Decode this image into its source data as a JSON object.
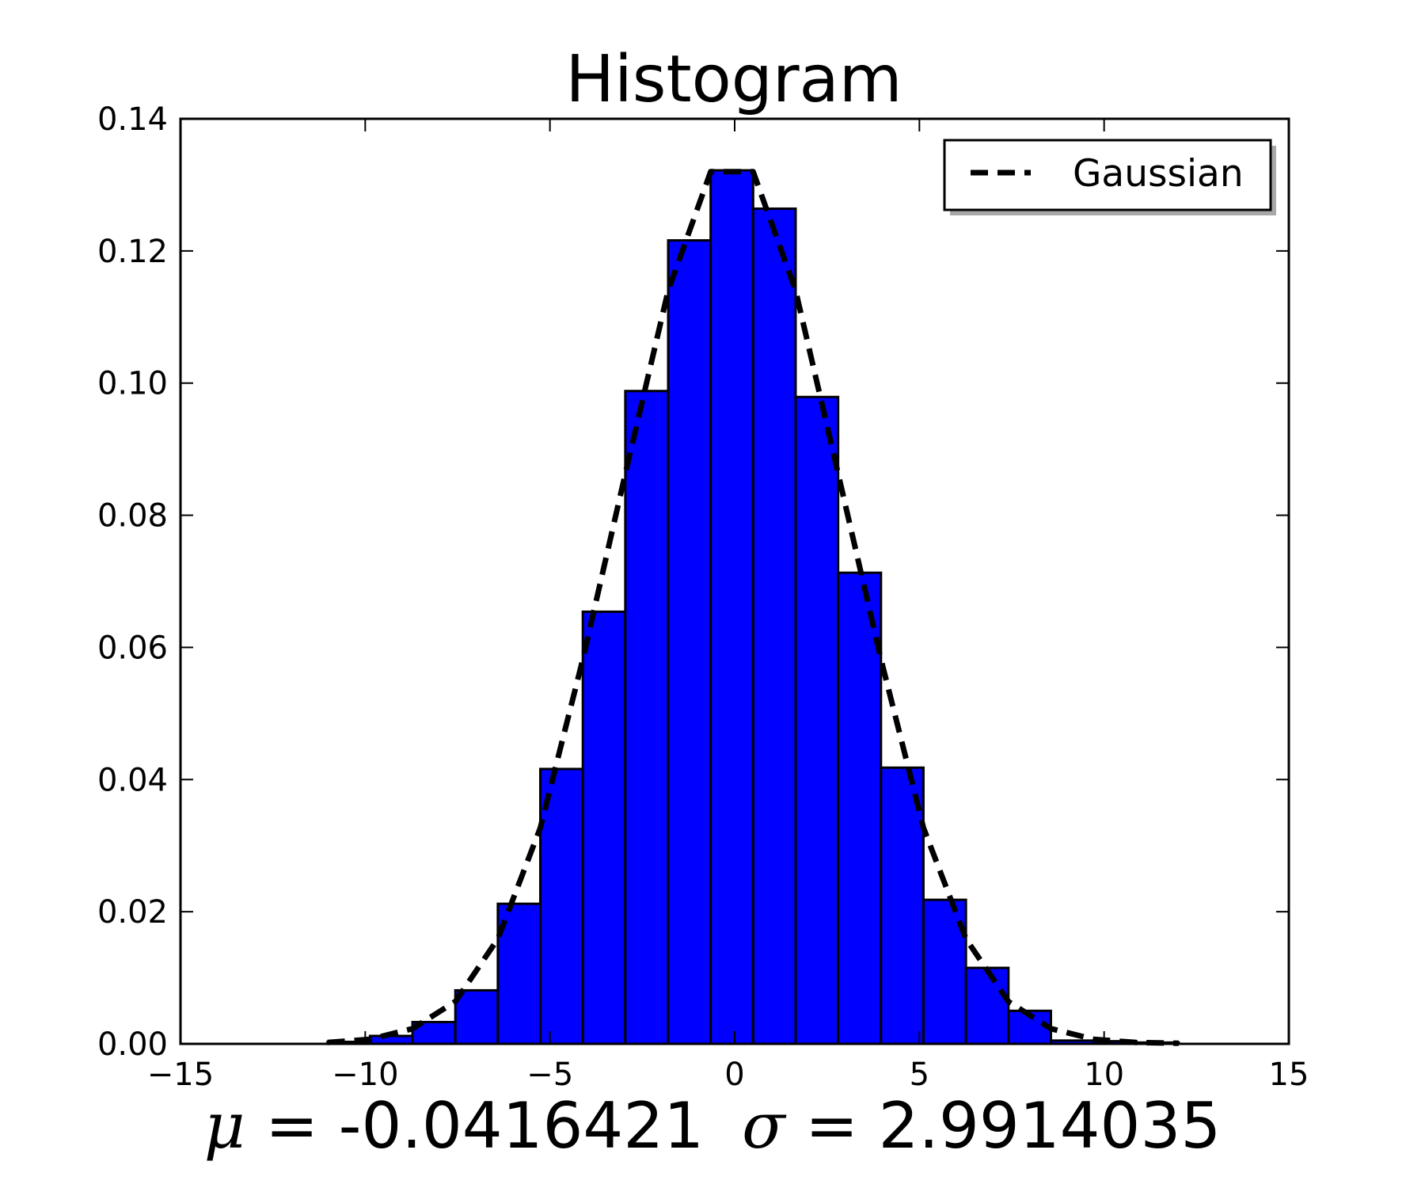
{
  "chart_data": {
    "type": "bar",
    "title": "Histogram",
    "xlabel": "",
    "ylabel": "",
    "xlim": [
      -15,
      15
    ],
    "ylim": [
      0,
      0.14
    ],
    "grid": false,
    "legend_placement": "top-right",
    "bar_color": "#0000ff",
    "edge_color": "#000000",
    "x_ticks": [
      {
        "value": -15,
        "label": "−15"
      },
      {
        "value": -10,
        "label": "−10"
      },
      {
        "value": -5,
        "label": "−5"
      },
      {
        "value": 0,
        "label": "0"
      },
      {
        "value": 5,
        "label": "5"
      },
      {
        "value": 10,
        "label": "10"
      },
      {
        "value": 15,
        "label": "15"
      }
    ],
    "y_ticks": [
      {
        "value": 0.0,
        "label": "0.00"
      },
      {
        "value": 0.02,
        "label": "0.02"
      },
      {
        "value": 0.04,
        "label": "0.04"
      },
      {
        "value": 0.06,
        "label": "0.06"
      },
      {
        "value": 0.08,
        "label": "0.08"
      },
      {
        "value": 0.1,
        "label": "0.10"
      },
      {
        "value": 0.12,
        "label": "0.12"
      },
      {
        "value": 0.14,
        "label": "0.14"
      }
    ],
    "bins": [
      {
        "x0": -11.02,
        "x1": -9.87,
        "value": 0.0003
      },
      {
        "x0": -9.87,
        "x1": -8.72,
        "value": 0.0012
      },
      {
        "x0": -8.72,
        "x1": -7.56,
        "value": 0.0033
      },
      {
        "x0": -7.56,
        "x1": -6.41,
        "value": 0.0081
      },
      {
        "x0": -6.41,
        "x1": -5.26,
        "value": 0.0212
      },
      {
        "x0": -5.26,
        "x1": -4.11,
        "value": 0.0416
      },
      {
        "x0": -4.11,
        "x1": -2.96,
        "value": 0.0654
      },
      {
        "x0": -2.96,
        "x1": -1.8,
        "value": 0.0988
      },
      {
        "x0": -1.8,
        "x1": -0.65,
        "value": 0.1216
      },
      {
        "x0": -0.65,
        "x1": 0.5,
        "value": 0.1322
      },
      {
        "x0": 0.5,
        "x1": 1.65,
        "value": 0.1264
      },
      {
        "x0": 1.65,
        "x1": 2.8,
        "value": 0.0979
      },
      {
        "x0": 2.8,
        "x1": 3.96,
        "value": 0.0713
      },
      {
        "x0": 3.96,
        "x1": 5.11,
        "value": 0.0418
      },
      {
        "x0": 5.11,
        "x1": 6.26,
        "value": 0.0218
      },
      {
        "x0": 6.26,
        "x1": 7.41,
        "value": 0.0115
      },
      {
        "x0": 7.41,
        "x1": 8.56,
        "value": 0.005
      },
      {
        "x0": 8.56,
        "x1": 9.72,
        "value": 0.0005
      },
      {
        "x0": 9.72,
        "x1": 10.87,
        "value": 0.0004
      },
      {
        "x0": 10.87,
        "x1": 12.02,
        "value": 0.0002
      }
    ],
    "gaussian": {
      "name": "Gaussian",
      "color": "#000000",
      "style": "dashed",
      "x": [
        -11.02,
        -9.87,
        -8.72,
        -7.56,
        -6.41,
        -5.26,
        -4.11,
        -2.96,
        -1.8,
        -0.65,
        0.5,
        1.65,
        2.8,
        3.96,
        5.11,
        6.26,
        7.41,
        8.56,
        9.72,
        10.87,
        12.02
      ],
      "y": [
        0.0002,
        0.0007,
        0.0023,
        0.0064,
        0.0159,
        0.0327,
        0.0582,
        0.0863,
        0.114,
        0.132,
        0.132,
        0.114,
        0.0863,
        0.0582,
        0.0327,
        0.0159,
        0.0064,
        0.0023,
        0.0007,
        0.0002,
        0.0001
      ]
    },
    "annotation": {
      "mu_symbol": "μ",
      "mu_text": " = -0.0416421",
      "sigma_symbol": "σ",
      "sigma_text": " = 2.9914035"
    }
  }
}
